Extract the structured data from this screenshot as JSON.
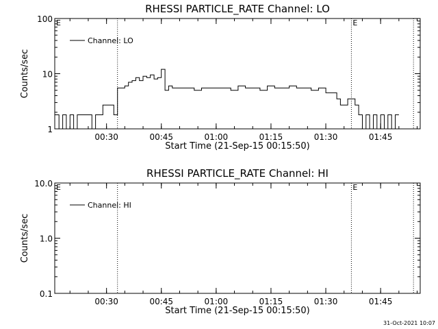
{
  "footer": {
    "timestamp": "31-Oct-2021 10:07"
  },
  "chart_data": [
    {
      "type": "line",
      "title": "RHESSI PARTICLE_RATE Channel: LO",
      "xlabel": "Start Time (21-Sep-15 00:15:50)",
      "ylabel": "Counts/sec",
      "y_scale": "log",
      "ylim": [
        1,
        100
      ],
      "y_ticks": [
        {
          "v": 1,
          "label": "1"
        },
        {
          "v": 10,
          "label": "10"
        },
        {
          "v": 100,
          "label": "100"
        }
      ],
      "xlim": [
        "00:15:50",
        "01:55:50"
      ],
      "x_ticks": [
        "00:30",
        "00:45",
        "01:00",
        "01:15",
        "01:30",
        "01:45"
      ],
      "legend_position": "top-left",
      "series": [
        {
          "name": "Channel: LO",
          "x": [
            "00:15:50",
            "00:17:00",
            "00:18:00",
            "00:19:00",
            "00:20:00",
            "00:21:00",
            "00:22:00",
            "00:23:00",
            "00:24:00",
            "00:25:00",
            "00:26:00",
            "00:27:00",
            "00:28:00",
            "00:29:00",
            "00:30:00",
            "00:31:00",
            "00:32:00",
            "00:33:00",
            "00:34:00",
            "00:35:00",
            "00:36:00",
            "00:37:00",
            "00:38:00",
            "00:39:00",
            "00:40:00",
            "00:41:00",
            "00:42:00",
            "00:43:00",
            "00:44:00",
            "00:45:00",
            "00:46:00",
            "00:47:00",
            "00:48:00",
            "00:50:00",
            "00:52:00",
            "00:54:00",
            "00:56:00",
            "00:58:00",
            "01:00:00",
            "01:02:00",
            "01:04:00",
            "01:06:00",
            "01:08:00",
            "01:10:00",
            "01:12:00",
            "01:14:00",
            "01:16:00",
            "01:18:00",
            "01:20:00",
            "01:22:00",
            "01:24:00",
            "01:26:00",
            "01:28:00",
            "01:30:00",
            "01:31:00",
            "01:32:00",
            "01:33:00",
            "01:34:00",
            "01:35:00",
            "01:36:00",
            "01:37:00",
            "01:38:00",
            "01:39:00",
            "01:40:00",
            "01:41:00",
            "01:42:00",
            "01:43:00",
            "01:44:00",
            "01:45:00",
            "01:46:00",
            "01:47:00",
            "01:48:00",
            "01:49:00",
            "01:50:00"
          ],
          "y": [
            1.8,
            1,
            1.8,
            1,
            1.8,
            1,
            1.8,
            1.8,
            1.8,
            1.8,
            1,
            1.8,
            1.8,
            2.7,
            2.7,
            2.7,
            1.8,
            5.5,
            5.5,
            6,
            7,
            7.5,
            8.5,
            7.5,
            9,
            8.5,
            9.5,
            8,
            8.5,
            12,
            5,
            6,
            5.5,
            5.5,
            5.5,
            5,
            5.5,
            5.5,
            5.5,
            5.5,
            5,
            6,
            5.5,
            5.5,
            5,
            6,
            5.5,
            5.5,
            6,
            5.5,
            5.5,
            5,
            5.5,
            4.5,
            4.5,
            4.5,
            3.5,
            2.7,
            2.7,
            3.5,
            3.5,
            2.7,
            1.8,
            1,
            1.8,
            1,
            1.8,
            1,
            1.8,
            1,
            1.8,
            1,
            1.8,
            1.8
          ]
        }
      ],
      "markers": [
        {
          "x": "00:33:00",
          "label": ""
        },
        {
          "x": "01:37:00",
          "label": "E"
        },
        {
          "x": "01:54:00",
          "label": ""
        }
      ],
      "corner_label": "E"
    },
    {
      "type": "line",
      "title": "RHESSI PARTICLE_RATE Channel: HI",
      "xlabel": "Start Time (21-Sep-15 00:15:50)",
      "ylabel": "Counts/sec",
      "y_scale": "log",
      "ylim": [
        0.1,
        10
      ],
      "y_ticks": [
        {
          "v": 0.1,
          "label": "0.1"
        },
        {
          "v": 1,
          "label": "1.0"
        },
        {
          "v": 10,
          "label": "10.0"
        }
      ],
      "xlim": [
        "00:15:50",
        "01:55:50"
      ],
      "x_ticks": [
        "00:30",
        "00:45",
        "01:00",
        "01:15",
        "01:30",
        "01:45"
      ],
      "legend_position": "top-left",
      "series": [
        {
          "name": "Channel: HI",
          "x": [],
          "y": []
        }
      ],
      "markers": [
        {
          "x": "00:33:00",
          "label": ""
        },
        {
          "x": "01:37:00",
          "label": "E"
        },
        {
          "x": "01:54:00",
          "label": ""
        }
      ],
      "corner_label": "E"
    }
  ]
}
